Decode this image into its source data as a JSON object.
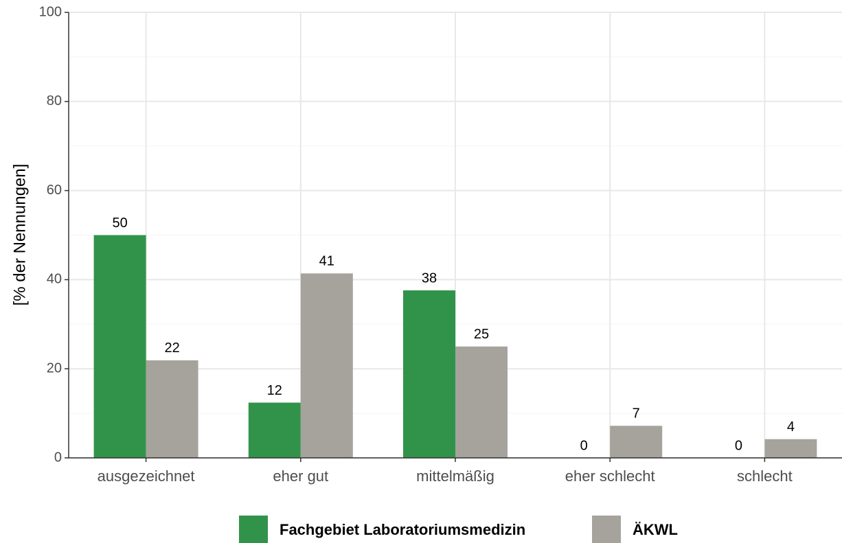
{
  "chart_data": {
    "type": "bar",
    "ylabel": "[% der Nennungen]",
    "categories": [
      "ausgezeichnet",
      "eher gut",
      "mittelmäßig",
      "eher schlecht",
      "schlecht"
    ],
    "series": [
      {
        "name": "Fachgebiet Laboratoriumsmedizin",
        "color": "#31934a",
        "values": [
          50,
          12.4,
          37.6,
          0,
          0
        ],
        "value_labels": [
          "50",
          "12",
          "38",
          "0",
          "0"
        ]
      },
      {
        "name": "ÄKWL",
        "color": "#a6a39c",
        "values": [
          21.9,
          41.4,
          25,
          7.2,
          4.2
        ],
        "value_labels": [
          "22",
          "41",
          "25",
          "7",
          "4"
        ]
      }
    ],
    "ylim": [
      0,
      100
    ],
    "yticks": [
      0,
      20,
      40,
      60,
      80,
      100
    ],
    "grid": true,
    "legend": "bottom"
  }
}
